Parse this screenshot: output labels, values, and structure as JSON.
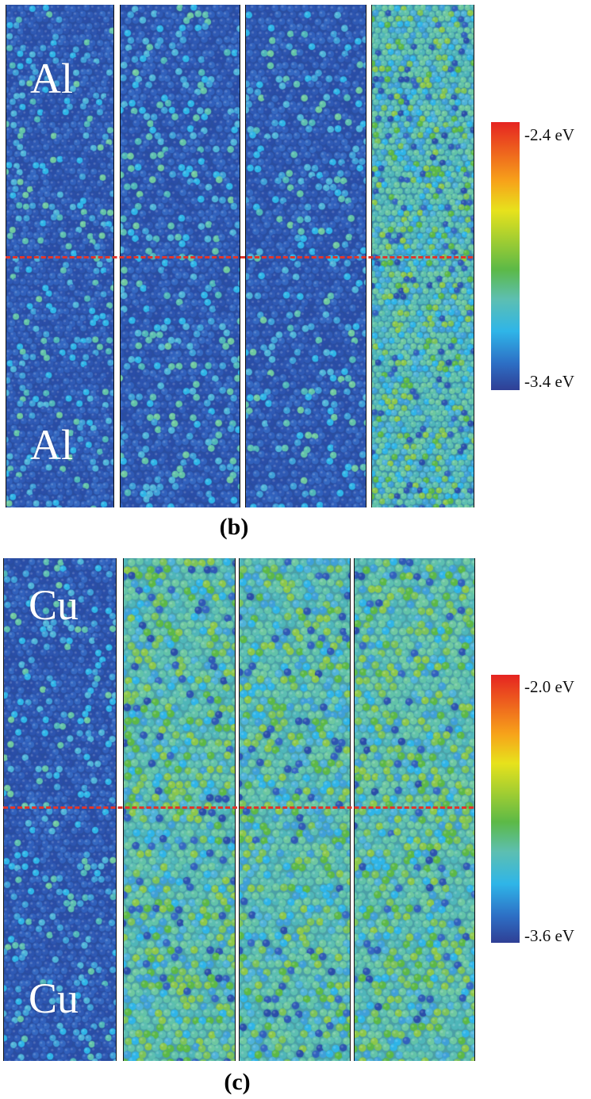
{
  "panels": [
    {
      "id": "b",
      "label": "(b)",
      "material_top": "Al",
      "material_bottom": "Al",
      "colorbar": {
        "max_label": "-2.4 eV",
        "min_label": "-3.4 eV",
        "max_value": -2.4,
        "min_value": -3.4
      }
    },
    {
      "id": "c",
      "label": "(c)",
      "material_top": "Cu",
      "material_bottom": "Cu",
      "colorbar": {
        "max_label": "-2.0 eV",
        "min_label": "-3.6 eV",
        "max_value": -2.0,
        "min_value": -3.6
      }
    }
  ],
  "colors": {
    "interface_line": "#e0352b",
    "colormap": [
      "#2f3f95",
      "#2d6fc5",
      "#2fb5e8",
      "#5dbfb1",
      "#5cb947",
      "#e7e21c",
      "#f7a21a",
      "#e52421"
    ]
  }
}
